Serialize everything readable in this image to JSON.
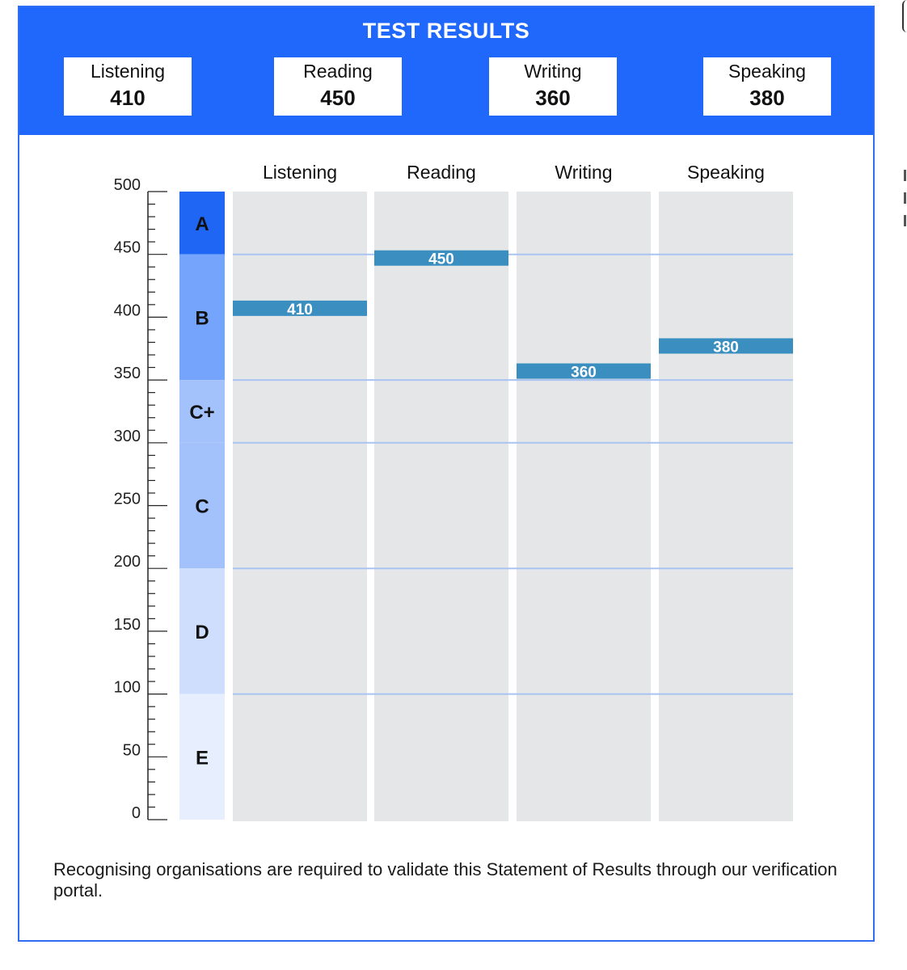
{
  "header": {
    "title": "TEST RESULTS",
    "scores": [
      {
        "label": "Listening",
        "value": "410"
      },
      {
        "label": "Reading",
        "value": "450"
      },
      {
        "label": "Writing",
        "value": "360"
      },
      {
        "label": "Speaking",
        "value": "380"
      }
    ]
  },
  "chart_data": {
    "type": "bar",
    "title": "",
    "ylim": [
      0,
      500
    ],
    "yticks": [
      0,
      50,
      100,
      150,
      200,
      250,
      300,
      350,
      400,
      450,
      500
    ],
    "categories": [
      "Listening",
      "Reading",
      "Writing",
      "Speaking"
    ],
    "values": [
      410,
      450,
      360,
      380
    ],
    "data_labels": [
      "410",
      "450",
      "360",
      "380"
    ],
    "grade_bands": [
      {
        "label": "A",
        "from": 450,
        "to": 500,
        "color": "#1f66f5"
      },
      {
        "label": "B",
        "from": 350,
        "to": 450,
        "color": "#74a4fb"
      },
      {
        "label": "C+",
        "from": 300,
        "to": 350,
        "color": "#a3c2fc"
      },
      {
        "label": "C",
        "from": 200,
        "to": 300,
        "color": "#a3c2fc"
      },
      {
        "label": "D",
        "from": 100,
        "to": 200,
        "color": "#cfdefd"
      },
      {
        "label": "E",
        "from": 0,
        "to": 100,
        "color": "#e7efff"
      }
    ],
    "reference_lines": [
      450,
      350,
      300,
      200,
      100
    ],
    "marker_color": "#3b8fc0",
    "column_color": "#e5e6e8",
    "grid_color": "#a9c3f3"
  },
  "footnote": "Recognising organisations are required to validate this Statement of Results through our verification portal."
}
